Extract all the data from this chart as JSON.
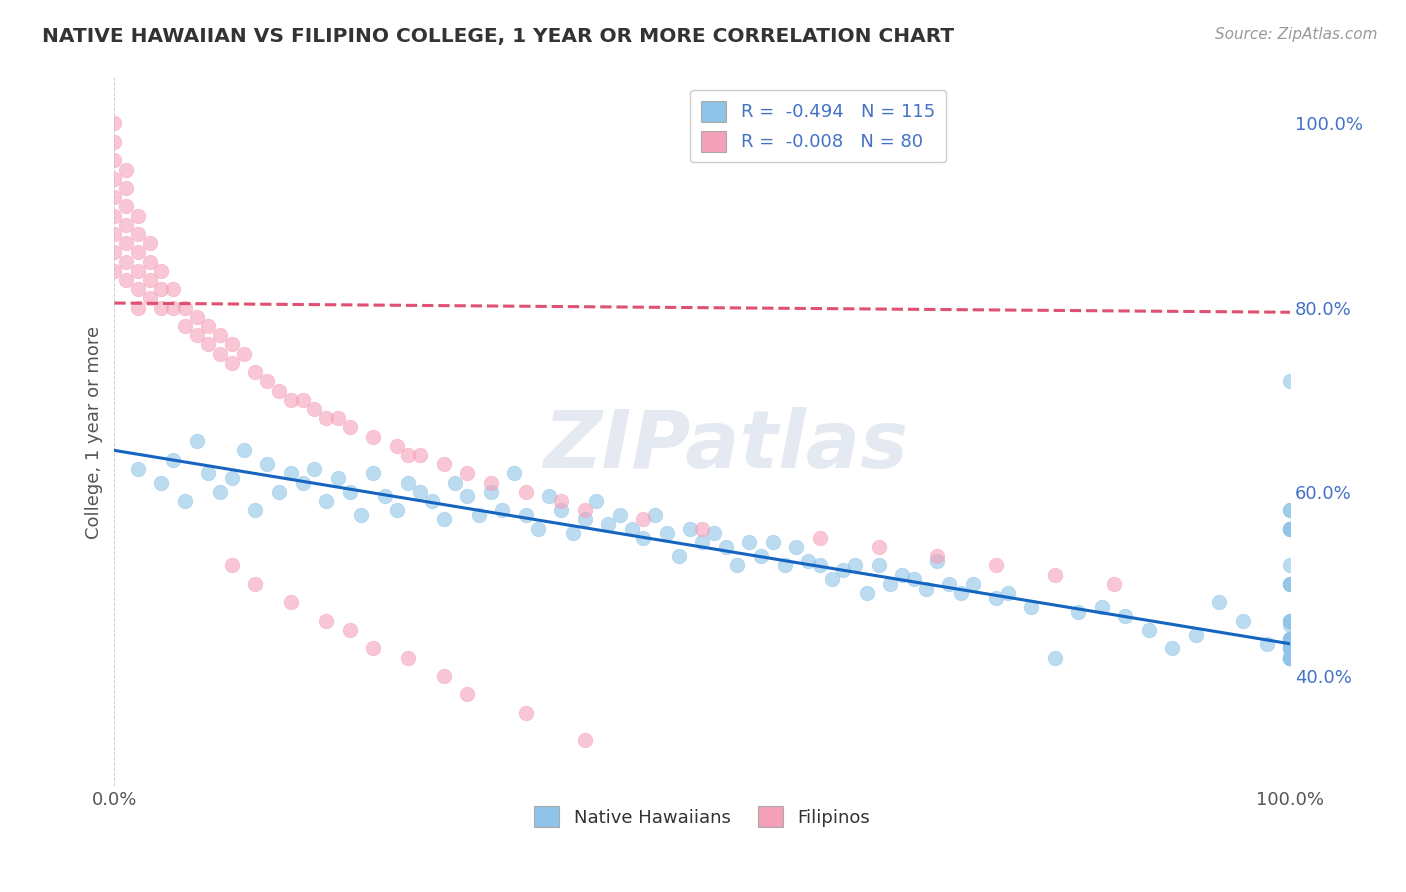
{
  "title": "NATIVE HAWAIIAN VS FILIPINO COLLEGE, 1 YEAR OR MORE CORRELATION CHART",
  "source_text": "Source: ZipAtlas.com",
  "ylabel": "College, 1 year or more",
  "xlim": [
    0.0,
    1.0
  ],
  "ylim": [
    0.28,
    1.05
  ],
  "x_tick_labels": [
    "0.0%",
    "100.0%"
  ],
  "y_tick_labels": [
    "40.0%",
    "60.0%",
    "80.0%",
    "100.0%"
  ],
  "y_tick_values": [
    0.4,
    0.6,
    0.8,
    1.0
  ],
  "blue_scatter_x": [
    0.02,
    0.04,
    0.05,
    0.06,
    0.07,
    0.08,
    0.09,
    0.1,
    0.11,
    0.12,
    0.13,
    0.14,
    0.15,
    0.16,
    0.17,
    0.18,
    0.19,
    0.2,
    0.21,
    0.22,
    0.23,
    0.24,
    0.25,
    0.26,
    0.27,
    0.28,
    0.29,
    0.3,
    0.31,
    0.32,
    0.33,
    0.34,
    0.35,
    0.36,
    0.37,
    0.38,
    0.39,
    0.4,
    0.41,
    0.42,
    0.43,
    0.44,
    0.45,
    0.46,
    0.47,
    0.48,
    0.49,
    0.5,
    0.51,
    0.52,
    0.53,
    0.54,
    0.55,
    0.56,
    0.57,
    0.58,
    0.59,
    0.6,
    0.61,
    0.62,
    0.63,
    0.64,
    0.65,
    0.66,
    0.67,
    0.68,
    0.69,
    0.7,
    0.71,
    0.72,
    0.73,
    0.75,
    0.76,
    0.78,
    0.8,
    0.82,
    0.84,
    0.86,
    0.88,
    0.9,
    0.92,
    0.94,
    0.96,
    0.98,
    1.0,
    1.0,
    1.0,
    1.0,
    1.0,
    1.0,
    1.0,
    1.0,
    1.0,
    1.0,
    1.0,
    1.0,
    1.0,
    1.0,
    1.0,
    1.0,
    1.0,
    1.0,
    1.0,
    1.0,
    1.0,
    1.0,
    1.0,
    1.0,
    1.0,
    1.0,
    1.0,
    1.0,
    1.0,
    1.0,
    1.0,
    1.0,
    1.0
  ],
  "blue_scatter_y": [
    0.625,
    0.61,
    0.635,
    0.59,
    0.655,
    0.62,
    0.6,
    0.615,
    0.645,
    0.58,
    0.63,
    0.6,
    0.62,
    0.61,
    0.625,
    0.59,
    0.615,
    0.6,
    0.575,
    0.62,
    0.595,
    0.58,
    0.61,
    0.6,
    0.59,
    0.57,
    0.61,
    0.595,
    0.575,
    0.6,
    0.58,
    0.62,
    0.575,
    0.56,
    0.595,
    0.58,
    0.555,
    0.57,
    0.59,
    0.565,
    0.575,
    0.56,
    0.55,
    0.575,
    0.555,
    0.53,
    0.56,
    0.545,
    0.555,
    0.54,
    0.52,
    0.545,
    0.53,
    0.545,
    0.52,
    0.54,
    0.525,
    0.52,
    0.505,
    0.515,
    0.52,
    0.49,
    0.52,
    0.5,
    0.51,
    0.505,
    0.495,
    0.525,
    0.5,
    0.49,
    0.5,
    0.485,
    0.49,
    0.475,
    0.42,
    0.47,
    0.475,
    0.465,
    0.45,
    0.43,
    0.445,
    0.48,
    0.46,
    0.435,
    0.455,
    0.44,
    0.42,
    0.43,
    0.435,
    0.43,
    0.43,
    0.43,
    0.42,
    0.42,
    0.42,
    0.42,
    0.42,
    0.42,
    0.435,
    0.44,
    0.44,
    0.46,
    0.46,
    0.5,
    0.5,
    0.56,
    0.56,
    0.58,
    0.58,
    0.56,
    0.56,
    0.46,
    0.44,
    0.44,
    0.72,
    0.5,
    0.52
  ],
  "pink_scatter_x": [
    0.0,
    0.0,
    0.0,
    0.0,
    0.0,
    0.0,
    0.0,
    0.0,
    0.0,
    0.01,
    0.01,
    0.01,
    0.01,
    0.01,
    0.01,
    0.01,
    0.02,
    0.02,
    0.02,
    0.02,
    0.02,
    0.02,
    0.03,
    0.03,
    0.03,
    0.03,
    0.04,
    0.04,
    0.04,
    0.05,
    0.05,
    0.06,
    0.06,
    0.07,
    0.07,
    0.08,
    0.08,
    0.09,
    0.09,
    0.1,
    0.1,
    0.11,
    0.12,
    0.13,
    0.14,
    0.15,
    0.16,
    0.17,
    0.18,
    0.19,
    0.2,
    0.22,
    0.24,
    0.25,
    0.26,
    0.28,
    0.3,
    0.32,
    0.35,
    0.38,
    0.4,
    0.45,
    0.5,
    0.6,
    0.65,
    0.7,
    0.75,
    0.8,
    0.85,
    0.1,
    0.12,
    0.15,
    0.18,
    0.2,
    0.22,
    0.25,
    0.28,
    0.3,
    0.35,
    0.4
  ],
  "pink_scatter_y": [
    1.0,
    0.98,
    0.96,
    0.94,
    0.92,
    0.9,
    0.88,
    0.86,
    0.84,
    0.95,
    0.93,
    0.91,
    0.89,
    0.87,
    0.85,
    0.83,
    0.9,
    0.88,
    0.86,
    0.84,
    0.82,
    0.8,
    0.87,
    0.85,
    0.83,
    0.81,
    0.84,
    0.82,
    0.8,
    0.82,
    0.8,
    0.8,
    0.78,
    0.79,
    0.77,
    0.78,
    0.76,
    0.77,
    0.75,
    0.76,
    0.74,
    0.75,
    0.73,
    0.72,
    0.71,
    0.7,
    0.7,
    0.69,
    0.68,
    0.68,
    0.67,
    0.66,
    0.65,
    0.64,
    0.64,
    0.63,
    0.62,
    0.61,
    0.6,
    0.59,
    0.58,
    0.57,
    0.56,
    0.55,
    0.54,
    0.53,
    0.52,
    0.51,
    0.5,
    0.52,
    0.5,
    0.48,
    0.46,
    0.45,
    0.43,
    0.42,
    0.4,
    0.38,
    0.36,
    0.33
  ],
  "blue_line_x": [
    0.0,
    1.0
  ],
  "blue_line_y": [
    0.645,
    0.435
  ],
  "pink_line_x": [
    0.0,
    1.0
  ],
  "pink_line_y": [
    0.805,
    0.795
  ],
  "blue_color": "#8fc4e8",
  "pink_color": "#f4a0b8",
  "blue_line_color": "#1565c0",
  "pink_line_color": "#e05070",
  "watermark_text": "ZIPatlas",
  "background_color": "#ffffff",
  "grid_color": "#cccccc",
  "title_color": "#333333",
  "axis_label_color": "#555555",
  "right_tick_color": "#4472c4",
  "legend_r_color": "#c0392b",
  "legend_n_color": "#2c3e50"
}
